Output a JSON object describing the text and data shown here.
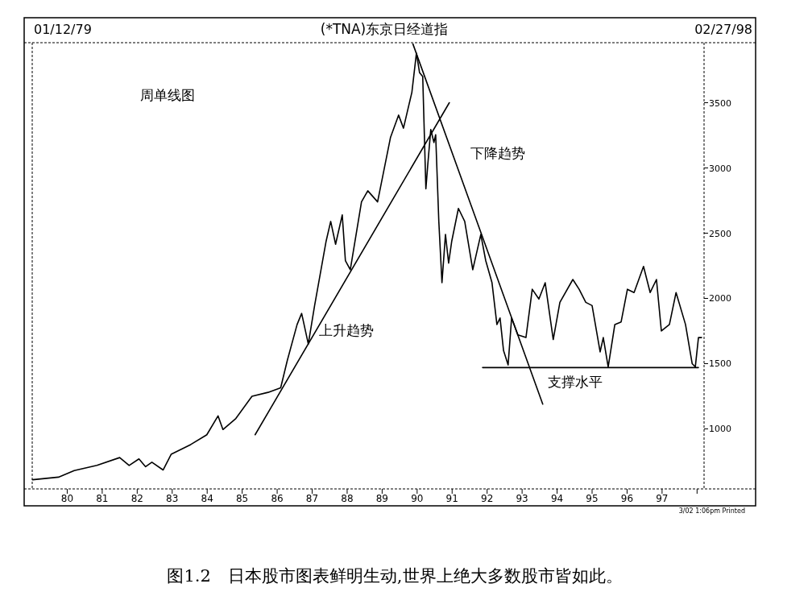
{
  "chart_data": {
    "type": "line",
    "title": "(*TNA)东京日经道指",
    "subtitle": "周单线图",
    "xlim": [
      1979,
      1998.2
    ],
    "ylim": [
      540,
      3960
    ],
    "xticks": [
      {
        "value": 1980,
        "label": "80"
      },
      {
        "value": 1981,
        "label": "81"
      },
      {
        "value": 1982,
        "label": "82"
      },
      {
        "value": 1983,
        "label": "83"
      },
      {
        "value": 1984,
        "label": "84"
      },
      {
        "value": 1985,
        "label": "85"
      },
      {
        "value": 1986,
        "label": "86"
      },
      {
        "value": 1987,
        "label": "87"
      },
      {
        "value": 1988,
        "label": "88"
      },
      {
        "value": 1989,
        "label": "89"
      },
      {
        "value": 1990,
        "label": "90"
      },
      {
        "value": 1991,
        "label": "91"
      },
      {
        "value": 1992,
        "label": "92"
      },
      {
        "value": 1993,
        "label": "93"
      },
      {
        "value": 1994,
        "label": "94"
      },
      {
        "value": 1995,
        "label": "95"
      },
      {
        "value": 1996,
        "label": "96"
      },
      {
        "value": 1997,
        "label": "97"
      },
      {
        "value": 1998,
        "label": null
      }
    ],
    "yticks": [
      1000,
      1500,
      2000,
      2500,
      3000,
      3500
    ],
    "grid": false,
    "marker": "none",
    "line_style": "solid",
    "series": [
      {
        "color": "#000000",
        "x": [
          1979.01,
          1979.75,
          1980.2,
          1980.85,
          1981.5,
          1981.77,
          1982.05,
          1982.24,
          1982.42,
          1982.74,
          1982.97,
          1983.53,
          1983.99,
          1984.31,
          1984.45,
          1984.82,
          1985.28,
          1985.74,
          1986.1,
          1986.29,
          1986.57,
          1986.7,
          1986.89,
          1987.07,
          1987.4,
          1987.53,
          1987.67,
          1987.86,
          1987.95,
          1988.09,
          1988.41,
          1988.59,
          1988.87,
          1989.24,
          1989.47,
          1989.61,
          1989.85,
          1989.98,
          1990.07,
          1990.16,
          1990.25,
          1990.3,
          1990.39,
          1990.48,
          1990.53,
          1990.62,
          1990.71,
          1990.81,
          1990.9,
          1990.99,
          1991.18,
          1991.36,
          1991.59,
          1991.82,
          1991.96,
          1992.14,
          1992.28,
          1992.37,
          1992.47,
          1992.6,
          1992.7,
          1992.88,
          1993.11,
          1993.29,
          1993.48,
          1993.66,
          1993.89,
          1994.08,
          1994.45,
          1994.63,
          1994.82,
          1995.0,
          1995.23,
          1995.32,
          1995.46,
          1995.65,
          1995.83,
          1996.01,
          1996.2,
          1996.47,
          1996.66,
          1996.84,
          1996.98,
          1997.21,
          1997.4,
          1997.67,
          1997.86,
          1997.95,
          1998.04,
          1998.13
        ],
        "values": [
          610,
          630,
          680,
          720,
          780,
          720,
          770,
          710,
          745,
          685,
          805,
          880,
          955,
          1100,
          995,
          1080,
          1250,
          1280,
          1315,
          1525,
          1800,
          1885,
          1650,
          1945,
          2440,
          2590,
          2415,
          2640,
          2290,
          2220,
          2740,
          2825,
          2740,
          3235,
          3405,
          3305,
          3580,
          3880,
          3730,
          3700,
          2840,
          3010,
          3295,
          3195,
          3255,
          2590,
          2120,
          2490,
          2270,
          2440,
          2690,
          2590,
          2220,
          2490,
          2290,
          2120,
          1800,
          1850,
          1600,
          1490,
          1850,
          1720,
          1700,
          2070,
          1995,
          2120,
          1685,
          1970,
          2145,
          2070,
          1970,
          1945,
          1590,
          1700,
          1475,
          1800,
          1820,
          2070,
          2045,
          2245,
          2045,
          2145,
          1750,
          1800,
          2045,
          1800,
          1500,
          1475,
          1700,
          1700
        ]
      },
      {
        "color": "#000000",
        "x": [
          1985.37,
          1990.92
        ],
        "values": [
          955,
          3500
        ]
      },
      {
        "color": "#000000",
        "x": [
          1989.88,
          1993.59
        ],
        "values": [
          3950,
          1190
        ]
      },
      {
        "color": "#000000",
        "x": [
          1991.87,
          1998.04
        ],
        "values": [
          1470,
          1470
        ]
      }
    ],
    "annotations": [
      "01/12/79",
      "02/27/98",
      "3/02 1:06pm Printed",
      "图1.2　日本股市图表鲜明生动,世界上绝大多数股市皆如此。",
      "上升趋势",
      "下降趋势",
      "支撑水平"
    ]
  }
}
